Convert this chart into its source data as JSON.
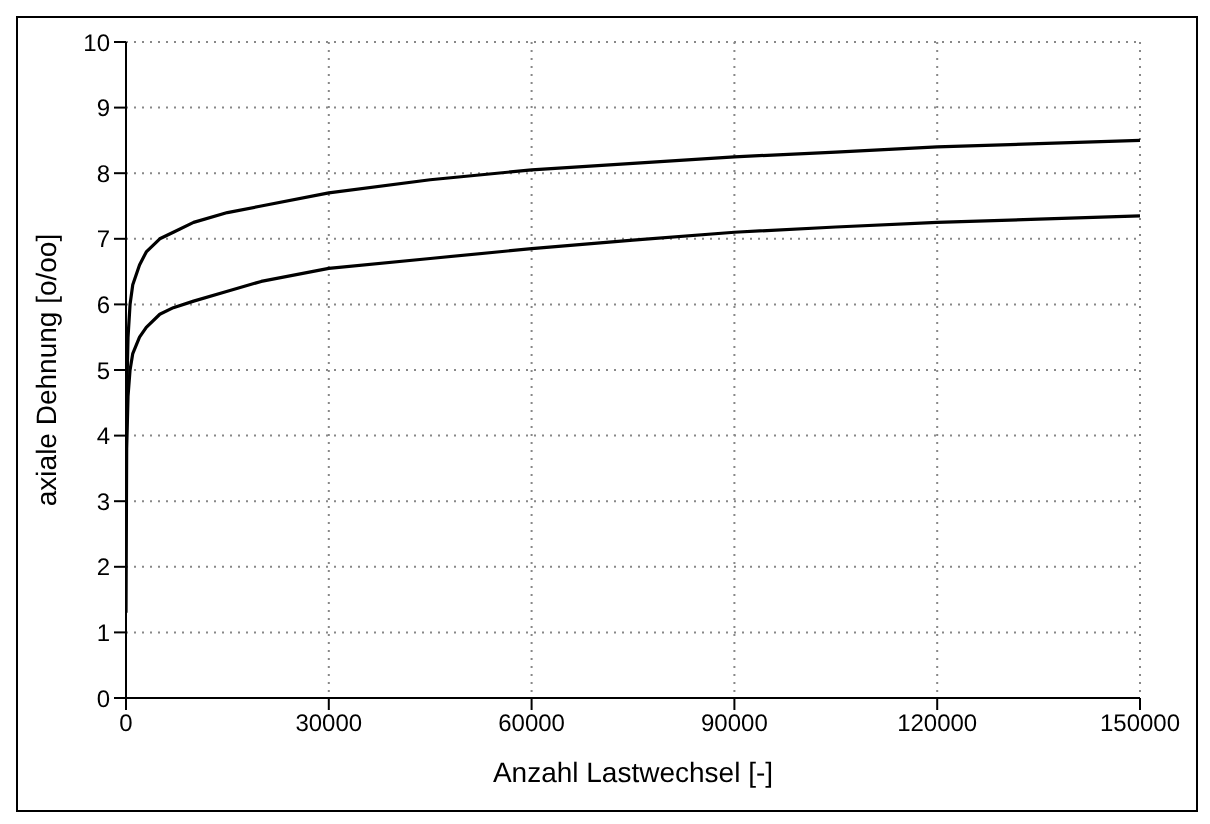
{
  "chart_data": {
    "type": "line",
    "xlabel": "Anzahl Lastwechsel [-]",
    "ylabel": "axiale Dehnung [o/oo]",
    "xlim": [
      0,
      150000
    ],
    "xticks": [
      0,
      30000,
      60000,
      90000,
      120000,
      150000
    ],
    "ylim": [
      0,
      10
    ],
    "yticks": [
      0,
      1,
      2,
      3,
      4,
      5,
      6,
      7,
      8,
      9,
      10
    ],
    "grid": true,
    "legend": false,
    "marker": "none",
    "line_style": "solid",
    "series": [
      {
        "color": "#000000",
        "x": [
          0,
          100,
          300,
          600,
          1000,
          2000,
          3000,
          5000,
          7000,
          10000,
          15000,
          20000,
          30000,
          45000,
          60000,
          75000,
          90000,
          105000,
          120000,
          135000,
          150000
        ],
        "values": [
          3.0,
          4.6,
          5.5,
          6.0,
          6.3,
          6.6,
          6.8,
          7.0,
          7.1,
          7.25,
          7.4,
          7.5,
          7.7,
          7.9,
          8.05,
          8.15,
          8.25,
          8.32,
          8.4,
          8.45,
          8.5
        ]
      },
      {
        "color": "#000000",
        "x": [
          0,
          100,
          300,
          600,
          1000,
          2000,
          3000,
          5000,
          7000,
          10000,
          15000,
          20000,
          30000,
          45000,
          60000,
          75000,
          90000,
          105000,
          120000,
          135000,
          150000
        ],
        "values": [
          1.3,
          3.8,
          4.6,
          5.0,
          5.25,
          5.5,
          5.65,
          5.85,
          5.95,
          6.05,
          6.2,
          6.35,
          6.55,
          6.7,
          6.85,
          6.98,
          7.1,
          7.18,
          7.25,
          7.3,
          7.35
        ]
      }
    ]
  }
}
